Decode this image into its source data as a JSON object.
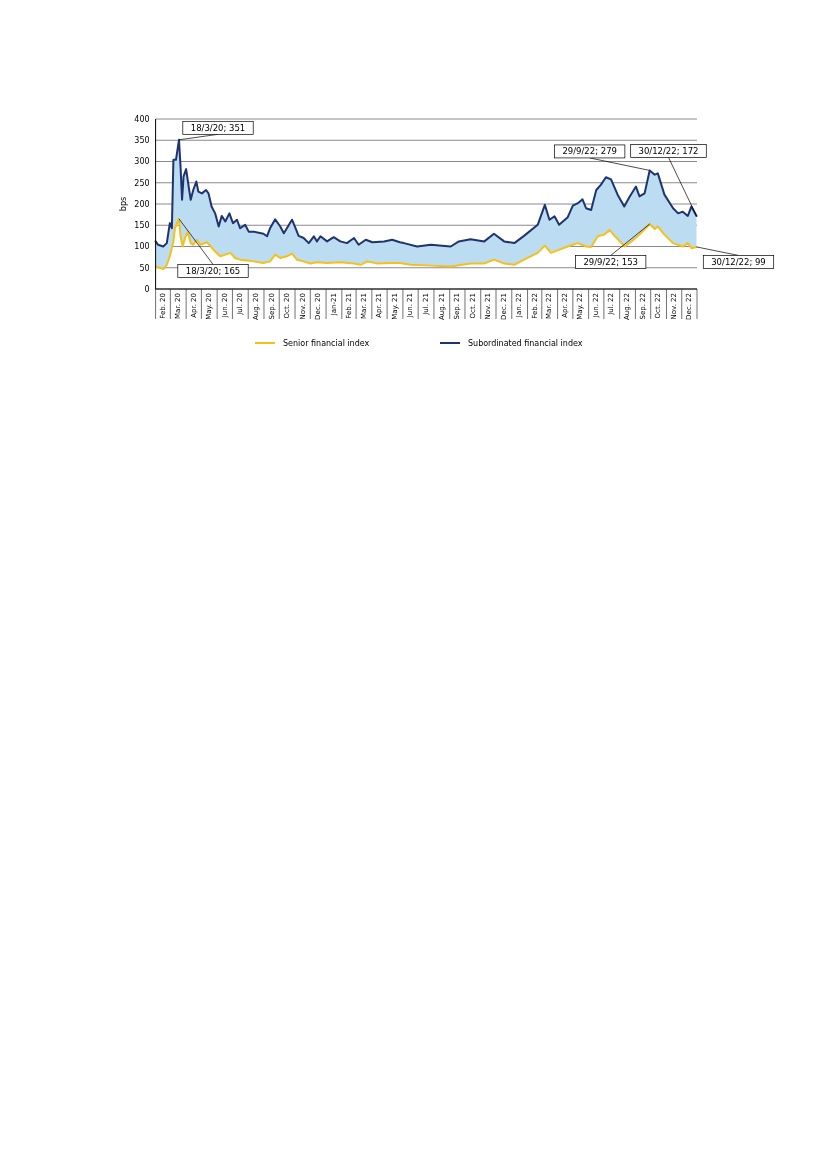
{
  "chart_data": {
    "type": "line",
    "ylabel": "bps",
    "ylim": [
      0,
      400
    ],
    "yticks": [
      0,
      50,
      100,
      150,
      200,
      250,
      300,
      350,
      400
    ],
    "grid": "y",
    "legend": "bottom",
    "xlim": [
      "2020-02-01",
      "2022-12-31"
    ],
    "xticks": [
      {
        "value": "2020-02-15",
        "label": "Feb. 20"
      },
      {
        "value": "2020-03-15",
        "label": "Mar. 20"
      },
      {
        "value": "2020-04-15",
        "label": "Apr. 20"
      },
      {
        "value": "2020-05-15",
        "label": "May. 20"
      },
      {
        "value": "2020-06-15",
        "label": "Jun. 20"
      },
      {
        "value": "2020-07-15",
        "label": "Jul. 20"
      },
      {
        "value": "2020-08-15",
        "label": "Aug. 20"
      },
      {
        "value": "2020-09-15",
        "label": "Sep. 20"
      },
      {
        "value": "2020-10-15",
        "label": "Oct. 20"
      },
      {
        "value": "2020-11-15",
        "label": "Nov. 20"
      },
      {
        "value": "2020-12-15",
        "label": "Dec. 20"
      },
      {
        "value": "2021-01-15",
        "label": "Jan-21"
      },
      {
        "value": "2021-02-15",
        "label": "Feb. 21"
      },
      {
        "value": "2021-03-15",
        "label": "Mar. 21"
      },
      {
        "value": "2021-04-15",
        "label": "Apr. 21"
      },
      {
        "value": "2021-05-15",
        "label": "May. 21"
      },
      {
        "value": "2021-06-15",
        "label": "Jun. 21"
      },
      {
        "value": "2021-07-15",
        "label": "Jul. 21"
      },
      {
        "value": "2021-08-15",
        "label": "Aug. 21"
      },
      {
        "value": "2021-09-15",
        "label": "Sep. 21"
      },
      {
        "value": "2021-10-15",
        "label": "Oct. 21"
      },
      {
        "value": "2021-11-15",
        "label": "Nov. 21"
      },
      {
        "value": "2021-12-15",
        "label": "Dec. 21"
      },
      {
        "value": "2022-01-15",
        "label": "Jan. 22"
      },
      {
        "value": "2022-02-15",
        "label": "Feb. 22"
      },
      {
        "value": "2022-03-15",
        "label": "Mar. 22"
      },
      {
        "value": "2022-04-15",
        "label": "Apr. 22"
      },
      {
        "value": "2022-05-15",
        "label": "May. 22"
      },
      {
        "value": "2022-06-15",
        "label": "Jun. 22"
      },
      {
        "value": "2022-07-15",
        "label": "Jul. 22"
      },
      {
        "value": "2022-08-15",
        "label": "Aug. 22"
      },
      {
        "value": "2022-09-15",
        "label": "Sep. 22"
      },
      {
        "value": "2022-10-15",
        "label": "Oct. 22"
      },
      {
        "value": "2022-11-15",
        "label": "Nov. 22"
      },
      {
        "value": "2022-12-15",
        "label": "Dec. 22"
      }
    ],
    "series": [
      {
        "name": "Senior financial index",
        "color": "#f5c01a",
        "x": [
          "2020-02-01",
          "2020-02-16",
          "2020-02-23",
          "2020-02-29",
          "2020-03-07",
          "2020-03-10",
          "2020-03-18",
          "2020-03-21",
          "2020-03-25",
          "2020-03-30",
          "2020-04-04",
          "2020-04-10",
          "2020-04-15",
          "2020-04-22",
          "2020-04-29",
          "2020-05-12",
          "2020-05-18",
          "2020-05-28",
          "2020-06-07",
          "2020-06-17",
          "2020-06-27",
          "2020-07-06",
          "2020-07-16",
          "2020-07-30",
          "2020-08-12",
          "2020-08-31",
          "2020-09-13",
          "2020-09-23",
          "2020-10-03",
          "2020-10-16",
          "2020-10-26",
          "2020-11-05",
          "2020-11-18",
          "2020-12-01",
          "2020-12-14",
          "2021-01-03",
          "2021-01-29",
          "2021-02-25",
          "2021-03-10",
          "2021-03-23",
          "2021-04-12",
          "2021-05-08",
          "2021-05-26",
          "2021-06-16",
          "2021-07-26",
          "2021-09-03",
          "2021-10-12",
          "2021-11-08",
          "2021-11-27",
          "2021-12-17",
          "2022-01-06",
          "2022-01-25",
          "2022-02-21",
          "2022-03-07",
          "2022-03-19",
          "2022-04-01",
          "2022-04-21",
          "2022-05-11",
          "2022-05-27",
          "2022-06-06",
          "2022-06-19",
          "2022-07-02",
          "2022-07-12",
          "2022-07-22",
          "2022-08-11",
          "2022-08-24",
          "2022-09-09",
          "2022-09-29",
          "2022-10-09",
          "2022-10-15",
          "2022-10-28",
          "2022-11-14",
          "2022-12-03",
          "2022-12-13",
          "2022-12-20",
          "2022-12-30"
        ],
        "values": [
          53,
          47,
          57,
          77,
          112,
          143,
          165,
          124,
          100,
          120,
          135,
          108,
          104,
          116,
          104,
          110,
          102,
          88,
          77,
          81,
          85,
          73,
          69,
          67,
          65,
          61,
          65,
          81,
          73,
          77,
          83,
          69,
          65,
          60,
          63,
          61,
          63,
          60,
          57,
          65,
          60,
          61,
          61,
          57,
          55,
          53,
          60,
          60,
          69,
          60,
          57,
          69,
          85,
          102,
          85,
          91,
          100,
          108,
          100,
          99,
          124,
          128,
          139,
          125,
          100,
          112,
          128,
          153,
          141,
          147,
          128,
          108,
          100,
          108,
          96,
          99
        ]
      },
      {
        "name": "Subordinated financial index",
        "color": "#1f3370",
        "x": [
          "2020-02-01",
          "2020-02-06",
          "2020-02-16",
          "2020-02-23",
          "2020-02-29",
          "2020-03-04",
          "2020-03-07",
          "2020-03-12",
          "2020-03-18",
          "2020-03-21",
          "2020-03-24",
          "2020-03-27",
          "2020-04-01",
          "2020-04-06",
          "2020-04-10",
          "2020-04-15",
          "2020-04-21",
          "2020-04-25",
          "2020-05-02",
          "2020-05-10",
          "2020-05-15",
          "2020-05-21",
          "2020-05-28",
          "2020-06-04",
          "2020-06-10",
          "2020-06-17",
          "2020-06-25",
          "2020-07-02",
          "2020-07-10",
          "2020-07-16",
          "2020-07-26",
          "2020-08-02",
          "2020-08-12",
          "2020-08-31",
          "2020-09-07",
          "2020-09-13",
          "2020-09-23",
          "2020-10-03",
          "2020-10-10",
          "2020-10-16",
          "2020-10-26",
          "2020-11-02",
          "2020-11-08",
          "2020-11-18",
          "2020-11-28",
          "2020-12-08",
          "2020-12-14",
          "2020-12-21",
          "2021-01-03",
          "2021-01-16",
          "2021-01-29",
          "2021-02-11",
          "2021-02-25",
          "2021-03-06",
          "2021-03-20",
          "2021-04-02",
          "2021-04-25",
          "2021-05-11",
          "2021-05-26",
          "2021-06-03",
          "2021-06-29",
          "2021-07-26",
          "2021-09-03",
          "2021-09-19",
          "2021-10-12",
          "2021-11-08",
          "2021-11-27",
          "2021-12-17",
          "2022-01-06",
          "2022-01-25",
          "2022-02-21",
          "2022-03-07",
          "2022-03-16",
          "2022-03-26",
          "2022-04-04",
          "2022-04-21",
          "2022-05-01",
          "2022-05-11",
          "2022-05-20",
          "2022-05-27",
          "2022-06-06",
          "2022-06-16",
          "2022-06-25",
          "2022-07-05",
          "2022-07-15",
          "2022-07-28",
          "2022-08-10",
          "2022-08-20",
          "2022-09-02",
          "2022-09-09",
          "2022-09-19",
          "2022-09-29",
          "2022-10-09",
          "2022-10-15",
          "2022-10-28",
          "2022-11-14",
          "2022-11-24",
          "2022-12-03",
          "2022-12-13",
          "2022-12-20",
          "2022-12-30"
        ],
        "lower": [
          53,
          51,
          47,
          57,
          77,
          95,
          112,
          150,
          165,
          124,
          105,
          108,
          126,
          126,
          108,
          104,
          114,
          110,
          105,
          109,
          106,
          98,
          88,
          80,
          78,
          81,
          84,
          78,
          71,
          69,
          67,
          66,
          65,
          61,
          63,
          65,
          81,
          73,
          75,
          77,
          83,
          73,
          68,
          65,
          61,
          62,
          63,
          62,
          61,
          62,
          63,
          61,
          60,
          58,
          63,
          62,
          60,
          61,
          61,
          59,
          56,
          55,
          53,
          56,
          60,
          60,
          69,
          60,
          57,
          69,
          85,
          102,
          89,
          88,
          93,
          100,
          104,
          108,
          103,
          100,
          99,
          118,
          126,
          131,
          135,
          117,
          103,
          108,
          118,
          128,
          140,
          153,
          141,
          147,
          128,
          108,
          103,
          100,
          108,
          96,
          99
        ],
        "upper": [
          112,
          104,
          100,
          108,
          155,
          143,
          304,
          304,
          351,
          288,
          210,
          265,
          282,
          241,
          210,
          233,
          253,
          229,
          225,
          233,
          225,
          194,
          178,
          147,
          172,
          159,
          178,
          155,
          163,
          143,
          151,
          135,
          135,
          130,
          124,
          143,
          164,
          147,
          131,
          143,
          163,
          143,
          125,
          120,
          108,
          124,
          112,
          124,
          112,
          122,
          112,
          108,
          120,
          104,
          116,
          110,
          112,
          116,
          110,
          108,
          100,
          104,
          100,
          112,
          117,
          112,
          130,
          112,
          108,
          125,
          151,
          198,
          163,
          171,
          151,
          169,
          196,
          202,
          211,
          190,
          186,
          233,
          245,
          263,
          258,
          222,
          194,
          216,
          241,
          218,
          225,
          279,
          269,
          272,
          222,
          190,
          178,
          182,
          172,
          194,
          172
        ],
        "values": [
          112,
          104,
          100,
          108,
          155,
          143,
          304,
          304,
          351,
          288,
          210,
          265,
          282,
          241,
          210,
          233,
          253,
          229,
          225,
          233,
          225,
          194,
          178,
          147,
          172,
          159,
          178,
          155,
          163,
          143,
          151,
          135,
          135,
          130,
          124,
          143,
          164,
          147,
          131,
          143,
          163,
          143,
          125,
          120,
          108,
          124,
          112,
          124,
          112,
          122,
          112,
          108,
          120,
          104,
          116,
          110,
          112,
          116,
          110,
          108,
          100,
          104,
          100,
          112,
          117,
          112,
          130,
          112,
          108,
          125,
          151,
          198,
          163,
          171,
          151,
          169,
          196,
          202,
          211,
          190,
          186,
          233,
          245,
          263,
          258,
          222,
          194,
          216,
          241,
          218,
          225,
          279,
          269,
          272,
          222,
          190,
          178,
          182,
          172,
          194,
          172
        ]
      }
    ],
    "annotations": [
      {
        "text": "18/3/20; 351",
        "x": "2020-03-18",
        "y": 351
      },
      {
        "text": "18/3/20; 165",
        "x": "2020-03-18",
        "y": 165
      },
      {
        "text": "29/9/22; 279",
        "x": "2022-09-29",
        "y": 279
      },
      {
        "text": "30/12/22; 172",
        "x": "2022-12-30",
        "y": 172
      },
      {
        "text": "29/9/22; 153",
        "x": "2022-09-29",
        "y": 153
      },
      {
        "text": "30/12/22; 99",
        "x": "2022-12-30",
        "y": 99
      }
    ]
  }
}
